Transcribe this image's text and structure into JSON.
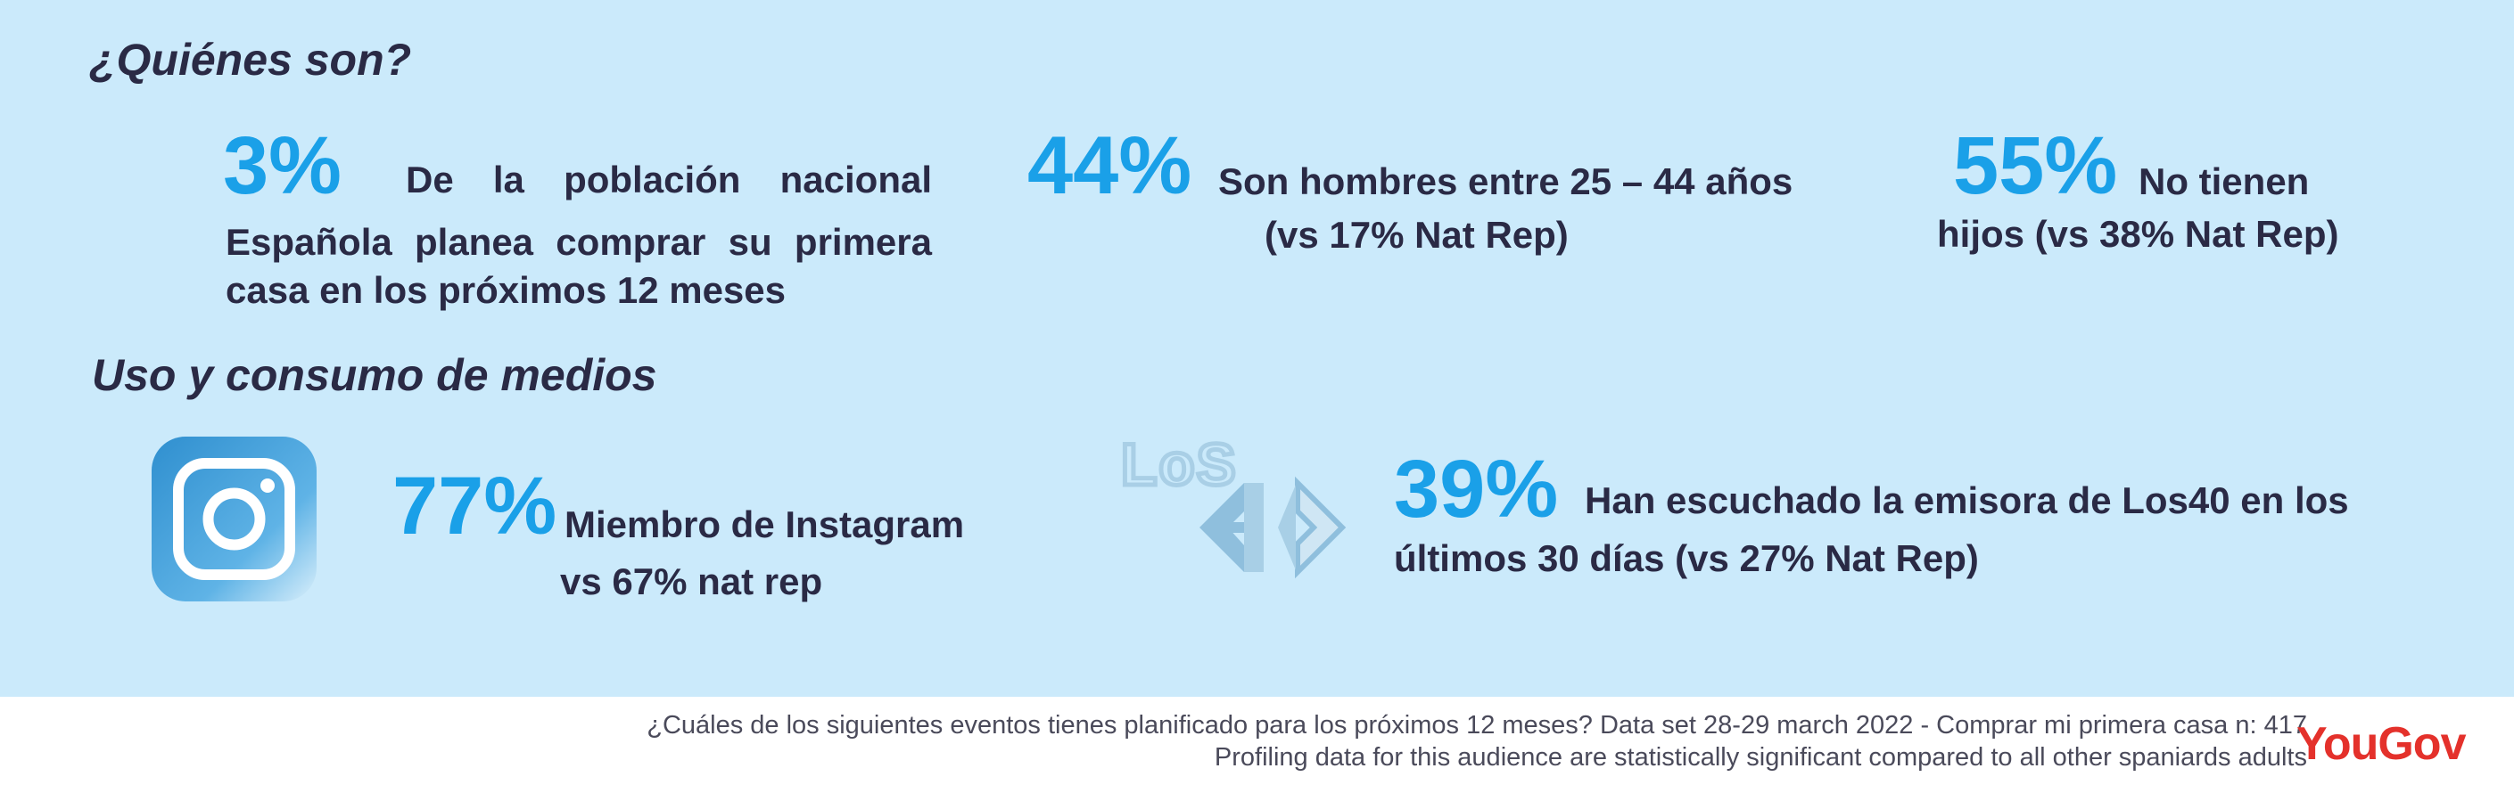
{
  "colors": {
    "panel": "#cbeafb",
    "accent": "#1aa0e8",
    "text": "#2a2a45",
    "brand": "#e4312b"
  },
  "section1": {
    "title": "¿Quiénes son?"
  },
  "stat1": {
    "value": "3%",
    "line1": "De la población nacional",
    "line2": "Española planea comprar su primera",
    "line3": "casa en los próximos 12 meses"
  },
  "stat2": {
    "value": "44%",
    "line1": "Son hombres entre 25 – 44 años",
    "line2": "(vs 17% Nat Rep)"
  },
  "stat3": {
    "value": "55%",
    "line1": "No tienen",
    "line2": "hijos (vs 38% Nat Rep)"
  },
  "section2": {
    "title": "Uso y consumo de medios"
  },
  "stat4": {
    "icon": "instagram-icon",
    "value": "77%",
    "line1": "Miembro de Instagram",
    "line2": "vs 67% nat rep"
  },
  "stat5": {
    "icon": "los40-logo",
    "logo_text": "LoS",
    "value": "39%",
    "line1": "Han escuchado la emisora de Los40 en los",
    "line2": "últimos 30 días (vs 27% Nat Rep)"
  },
  "footer": {
    "line1": "¿Cuáles de los siguientes eventos tienes planificado para los próximos 12 meses? Data set 28-29 march 2022   - Comprar mi primera casa n: 417",
    "line2": "Profiling data for this audience are statistically significant compared to all other spaniards adults"
  },
  "brand": {
    "name": "YouGov"
  }
}
